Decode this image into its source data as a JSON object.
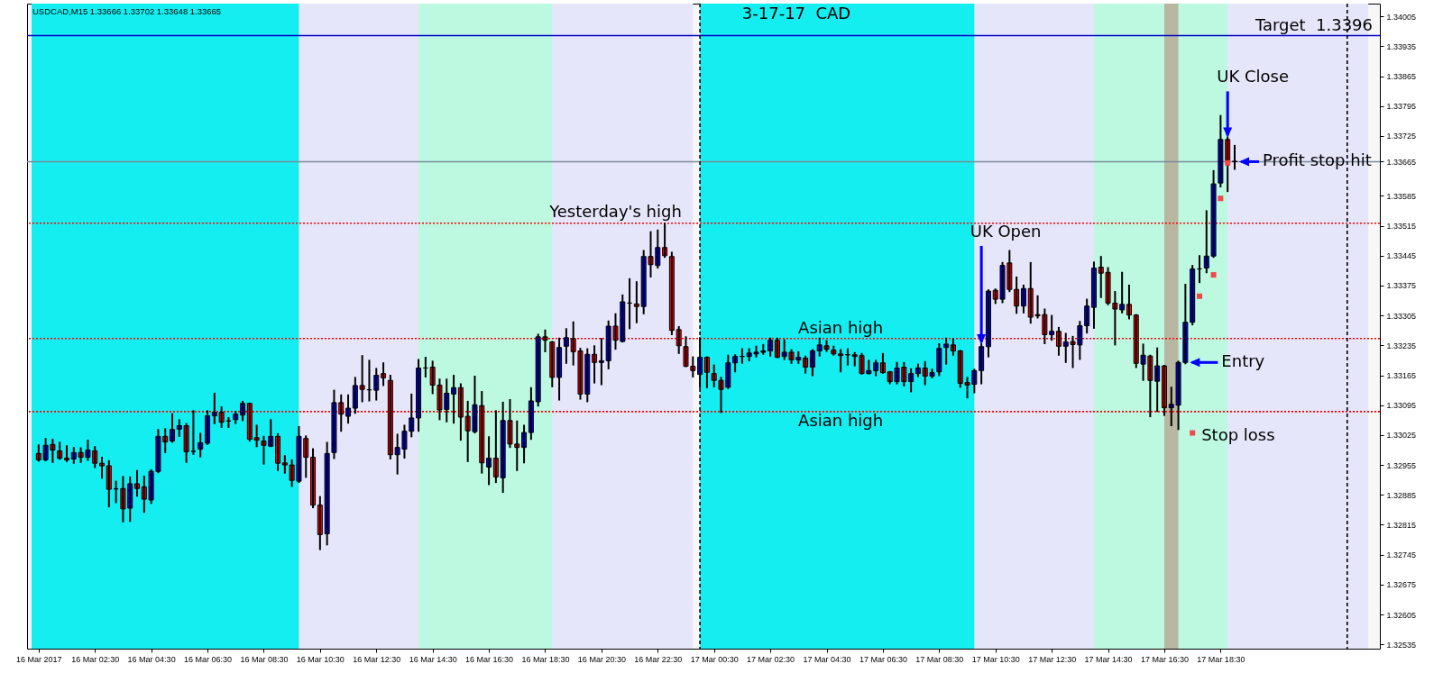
{
  "chart_data": {
    "type": "candlestick",
    "title": "3-17-17  CAD",
    "subtitle": "USDCAD,M15 1.33666 1.33702 1.33648 1.33665",
    "x": [
      "2017-03-16T00:30",
      "2017-03-16T00:45",
      "2017-03-16T01:00",
      "2017-03-16T01:15",
      "2017-03-16T01:30",
      "2017-03-16T01:45",
      "2017-03-16T02:00",
      "2017-03-16T02:15",
      "2017-03-16T02:30",
      "2017-03-16T02:45",
      "2017-03-16T03:00",
      "2017-03-16T03:15",
      "2017-03-16T03:30",
      "2017-03-16T03:45",
      "2017-03-16T04:00",
      "2017-03-16T04:15",
      "2017-03-16T04:30",
      "2017-03-16T04:45",
      "2017-03-16T05:00",
      "2017-03-16T05:15",
      "2017-03-16T05:30",
      "2017-03-16T05:45",
      "2017-03-16T06:00",
      "2017-03-16T06:15",
      "2017-03-16T06:30",
      "2017-03-16T06:45",
      "2017-03-16T07:00",
      "2017-03-16T07:15",
      "2017-03-16T07:30",
      "2017-03-16T07:45",
      "2017-03-16T08:00",
      "2017-03-16T08:15",
      "2017-03-16T08:30",
      "2017-03-16T08:45",
      "2017-03-16T09:00",
      "2017-03-16T09:15",
      "2017-03-16T09:30",
      "2017-03-16T09:45",
      "2017-03-16T10:00",
      "2017-03-16T10:15",
      "2017-03-16T10:30",
      "2017-03-16T10:45",
      "2017-03-16T11:00",
      "2017-03-16T11:15",
      "2017-03-16T11:30",
      "2017-03-16T11:45",
      "2017-03-16T12:00",
      "2017-03-16T12:15",
      "2017-03-16T12:30",
      "2017-03-16T12:45",
      "2017-03-16T13:00",
      "2017-03-16T13:15",
      "2017-03-16T13:30",
      "2017-03-16T13:45",
      "2017-03-16T14:00",
      "2017-03-16T14:15",
      "2017-03-16T14:30",
      "2017-03-16T14:45",
      "2017-03-16T15:00",
      "2017-03-16T15:15",
      "2017-03-16T15:30",
      "2017-03-16T15:45",
      "2017-03-16T16:00",
      "2017-03-16T16:15",
      "2017-03-16T16:30",
      "2017-03-16T16:45",
      "2017-03-16T17:00",
      "2017-03-16T17:15",
      "2017-03-16T17:30",
      "2017-03-16T17:45",
      "2017-03-16T18:00",
      "2017-03-16T18:15",
      "2017-03-16T18:30",
      "2017-03-16T18:45",
      "2017-03-16T19:00",
      "2017-03-16T19:15",
      "2017-03-16T19:30",
      "2017-03-16T19:45",
      "2017-03-16T20:00",
      "2017-03-16T20:15",
      "2017-03-16T20:30",
      "2017-03-16T20:45",
      "2017-03-16T21:00",
      "2017-03-16T21:15",
      "2017-03-16T21:30",
      "2017-03-16T21:45",
      "2017-03-16T22:00",
      "2017-03-16T22:15",
      "2017-03-16T22:30",
      "2017-03-16T22:45",
      "2017-03-16T23:00",
      "2017-03-16T23:15",
      "2017-03-16T23:30",
      "2017-03-16T23:45",
      "2017-03-17T00:00",
      "2017-03-17T00:15",
      "2017-03-17T00:30",
      "2017-03-17T00:45",
      "2017-03-17T01:00",
      "2017-03-17T01:15",
      "2017-03-17T01:30",
      "2017-03-17T01:45",
      "2017-03-17T02:00",
      "2017-03-17T02:15",
      "2017-03-17T02:30",
      "2017-03-17T02:45",
      "2017-03-17T03:00",
      "2017-03-17T03:15",
      "2017-03-17T03:30",
      "2017-03-17T03:45",
      "2017-03-17T04:00",
      "2017-03-17T04:15",
      "2017-03-17T04:30",
      "2017-03-17T04:45",
      "2017-03-17T05:00",
      "2017-03-17T05:15",
      "2017-03-17T05:30",
      "2017-03-17T05:45",
      "2017-03-17T06:00",
      "2017-03-17T06:15",
      "2017-03-17T06:30",
      "2017-03-17T06:45",
      "2017-03-17T07:00",
      "2017-03-17T07:15",
      "2017-03-17T07:30",
      "2017-03-17T07:45",
      "2017-03-17T08:00",
      "2017-03-17T08:15",
      "2017-03-17T08:30",
      "2017-03-17T08:45",
      "2017-03-17T09:00",
      "2017-03-17T09:15",
      "2017-03-17T09:30",
      "2017-03-17T09:45",
      "2017-03-17T10:00",
      "2017-03-17T10:15",
      "2017-03-17T10:30",
      "2017-03-17T10:45",
      "2017-03-17T11:00",
      "2017-03-17T11:15",
      "2017-03-17T11:30",
      "2017-03-17T11:45",
      "2017-03-17T12:00",
      "2017-03-17T12:15",
      "2017-03-17T12:30",
      "2017-03-17T12:45",
      "2017-03-17T13:00",
      "2017-03-17T13:15",
      "2017-03-17T13:30",
      "2017-03-17T13:45",
      "2017-03-17T14:00",
      "2017-03-17T14:15",
      "2017-03-17T14:30",
      "2017-03-17T14:45",
      "2017-03-17T15:00",
      "2017-03-17T15:15",
      "2017-03-17T15:30",
      "2017-03-17T15:45",
      "2017-03-17T16:00",
      "2017-03-17T16:15",
      "2017-03-17T16:30",
      "2017-03-17T16:45",
      "2017-03-17T17:00",
      "2017-03-17T17:15",
      "2017-03-17T17:30",
      "2017-03-17T17:45",
      "2017-03-17T18:00",
      "2017-03-17T18:15",
      "2017-03-17T18:30",
      "2017-03-17T18:45",
      "2017-03-17T19:00"
    ],
    "ohlc": [
      [
        1.32982,
        1.33001,
        1.32965,
        1.32967
      ],
      [
        1.32967,
        1.33016,
        1.32966,
        1.33001
      ],
      [
        1.33003,
        1.33014,
        1.32962,
        1.3299
      ],
      [
        1.32988,
        1.33007,
        1.32969,
        1.32971
      ],
      [
        1.32971,
        1.32999,
        1.32964,
        1.32967
      ],
      [
        1.32969,
        1.32995,
        1.3296,
        1.32984
      ],
      [
        1.32984,
        1.32994,
        1.32962,
        1.32973
      ],
      [
        1.32973,
        1.33012,
        1.32967,
        1.3299
      ],
      [
        1.32988,
        1.32997,
        1.3295,
        1.32959
      ],
      [
        1.32959,
        1.32972,
        1.32925,
        1.32953
      ],
      [
        1.32953,
        1.32964,
        1.32858,
        1.32898
      ],
      [
        1.32899,
        1.32916,
        1.32868,
        1.32899
      ],
      [
        1.329,
        1.32927,
        1.32823,
        1.32852
      ],
      [
        1.32854,
        1.32926,
        1.32824,
        1.32911
      ],
      [
        1.32911,
        1.32941,
        1.32883,
        1.329
      ],
      [
        1.32904,
        1.32928,
        1.32845,
        1.32875
      ],
      [
        1.32873,
        1.32943,
        1.32866,
        1.3294
      ],
      [
        1.3294,
        1.33037,
        1.32938,
        1.33022
      ],
      [
        1.33022,
        1.33039,
        1.32985,
        1.33009
      ],
      [
        1.33011,
        1.33074,
        1.33009,
        1.33038
      ],
      [
        1.33039,
        1.3306,
        1.33023,
        1.33047
      ],
      [
        1.33047,
        1.33051,
        1.32962,
        1.32986
      ],
      [
        1.32987,
        1.33081,
        1.32981,
        1.32987
      ],
      [
        1.32992,
        1.33028,
        1.32975,
        1.33007
      ],
      [
        1.33006,
        1.33081,
        1.33004,
        1.3307
      ],
      [
        1.3307,
        1.33122,
        1.33053,
        1.33078
      ],
      [
        1.33078,
        1.3309,
        1.33044,
        1.33055
      ],
      [
        1.33058,
        1.33065,
        1.33044,
        1.33058
      ],
      [
        1.33061,
        1.33079,
        1.33053,
        1.33074
      ],
      [
        1.33072,
        1.33103,
        1.3306,
        1.33099
      ],
      [
        1.33099,
        1.33099,
        1.33012,
        1.33015
      ],
      [
        1.33019,
        1.33047,
        1.32999,
        1.33013
      ],
      [
        1.33011,
        1.33021,
        1.32958,
        1.33001
      ],
      [
        1.32999,
        1.3306,
        1.32999,
        1.33022
      ],
      [
        1.33022,
        1.33027,
        1.32943,
        1.32959
      ],
      [
        1.3296,
        1.32976,
        1.32937,
        1.32955
      ],
      [
        1.32955,
        1.32966,
        1.32906,
        1.32919
      ],
      [
        1.32917,
        1.33044,
        1.32915,
        1.33022
      ],
      [
        1.33017,
        1.33022,
        1.32927,
        1.32973
      ],
      [
        1.32973,
        1.32992,
        1.32856,
        1.32861
      ],
      [
        1.32861,
        1.3288,
        1.32758,
        1.32792
      ],
      [
        1.32794,
        1.33007,
        1.32769,
        1.32982
      ],
      [
        1.32984,
        1.33129,
        1.32971,
        1.33101
      ],
      [
        1.33101,
        1.33118,
        1.33035,
        1.33074
      ],
      [
        1.33069,
        1.33118,
        1.33054,
        1.33088
      ],
      [
        1.33088,
        1.33159,
        1.33077,
        1.33141
      ],
      [
        1.33141,
        1.3321,
        1.33104,
        1.33132
      ],
      [
        1.33131,
        1.33199,
        1.33106,
        1.33131
      ],
      [
        1.3313,
        1.3318,
        1.33108,
        1.33165
      ],
      [
        1.33169,
        1.33193,
        1.33142,
        1.33159
      ],
      [
        1.33153,
        1.33164,
        1.3297,
        1.32979
      ],
      [
        1.32979,
        1.33026,
        1.32935,
        1.32996
      ],
      [
        1.32992,
        1.33047,
        1.32972,
        1.33034
      ],
      [
        1.33034,
        1.3312,
        1.33022,
        1.33065
      ],
      [
        1.33065,
        1.33201,
        1.33035,
        1.33182
      ],
      [
        1.33182,
        1.33206,
        1.33162,
        1.33182
      ],
      [
        1.33184,
        1.33197,
        1.33123,
        1.33142
      ],
      [
        1.33142,
        1.33155,
        1.33062,
        1.33084
      ],
      [
        1.33085,
        1.33155,
        1.33057,
        1.33123
      ],
      [
        1.33121,
        1.33164,
        1.33054,
        1.33136
      ],
      [
        1.33136,
        1.33144,
        1.33014,
        1.33067
      ],
      [
        1.33069,
        1.33103,
        1.32964,
        1.33035
      ],
      [
        1.33033,
        1.33162,
        1.33031,
        1.33096
      ],
      [
        1.33094,
        1.33126,
        1.32937,
        1.3296
      ],
      [
        1.3295,
        1.3302,
        1.3291,
        1.32971
      ],
      [
        1.32971,
        1.33081,
        1.32915,
        1.32927
      ],
      [
        1.32925,
        1.33101,
        1.32892,
        1.33059
      ],
      [
        1.33059,
        1.33107,
        1.32997,
        1.33004
      ],
      [
        1.33004,
        1.33057,
        1.32943,
        1.32996
      ],
      [
        1.32996,
        1.33047,
        1.32961,
        1.33031
      ],
      [
        1.33031,
        1.33135,
        1.33016,
        1.33105
      ],
      [
        1.33103,
        1.3326,
        1.33094,
        1.33255
      ],
      [
        1.33255,
        1.3327,
        1.33221,
        1.33247
      ],
      [
        1.33243,
        1.33243,
        1.33139,
        1.3316
      ],
      [
        1.3316,
        1.33251,
        1.33108,
        1.3323
      ],
      [
        1.33233,
        1.33273,
        1.33194,
        1.33253
      ],
      [
        1.33251,
        1.33289,
        1.3319,
        1.3322
      ],
      [
        1.33222,
        1.33227,
        1.3311,
        1.33121
      ],
      [
        1.33121,
        1.33226,
        1.33104,
        1.33214
      ],
      [
        1.33214,
        1.33233,
        1.33148,
        1.33195
      ],
      [
        1.33195,
        1.3325,
        1.33144,
        1.33199
      ],
      [
        1.33199,
        1.33291,
        1.33181,
        1.3328
      ],
      [
        1.3328,
        1.33308,
        1.33227,
        1.33247
      ],
      [
        1.33244,
        1.33352,
        1.33244,
        1.33337
      ],
      [
        1.33334,
        1.3339,
        1.33275,
        1.33334
      ],
      [
        1.33332,
        1.33383,
        1.33289,
        1.33326
      ],
      [
        1.33326,
        1.33456,
        1.3331,
        1.33443
      ],
      [
        1.33443,
        1.335,
        1.33396,
        1.33424
      ],
      [
        1.33422,
        1.33504,
        1.33417,
        1.33464
      ],
      [
        1.33464,
        1.3352,
        1.33442,
        1.33445
      ],
      [
        1.33443,
        1.33452,
        1.33261,
        1.3327
      ],
      [
        1.33272,
        1.33278,
        1.33217,
        1.33234
      ],
      [
        1.33232,
        1.33254,
        1.33186,
        1.33186
      ],
      [
        1.33186,
        1.33207,
        1.33162,
        1.33176
      ],
      [
        1.33167,
        1.33252,
        1.33137,
        1.33207
      ],
      [
        1.33207,
        1.33207,
        1.33137,
        1.33172
      ],
      [
        1.33169,
        1.33188,
        1.33139,
        1.33153
      ],
      [
        1.33153,
        1.33159,
        1.33079,
        1.33132
      ],
      [
        1.33137,
        1.33211,
        1.33135,
        1.33194
      ],
      [
        1.33194,
        1.33212,
        1.33174,
        1.33209
      ],
      [
        1.33209,
        1.33226,
        1.33194,
        1.33209
      ],
      [
        1.33209,
        1.33226,
        1.332,
        1.33217
      ],
      [
        1.33215,
        1.33232,
        1.33209,
        1.33219
      ],
      [
        1.33219,
        1.33236,
        1.33215,
        1.33222
      ],
      [
        1.33222,
        1.33251,
        1.33211,
        1.33247
      ],
      [
        1.33247,
        1.33251,
        1.33207,
        1.33207
      ],
      [
        1.33209,
        1.33247,
        1.33203,
        1.33219
      ],
      [
        1.33219,
        1.33224,
        1.33194,
        1.33201
      ],
      [
        1.33201,
        1.33219,
        1.33194,
        1.33207
      ],
      [
        1.33205,
        1.33209,
        1.33171,
        1.33184
      ],
      [
        1.33184,
        1.33224,
        1.33165,
        1.33222
      ],
      [
        1.33222,
        1.33251,
        1.33211,
        1.33236
      ],
      [
        1.33234,
        1.33245,
        1.33222,
        1.33226
      ],
      [
        1.33224,
        1.33232,
        1.33213,
        1.33215
      ],
      [
        1.33215,
        1.33224,
        1.33174,
        1.33211
      ],
      [
        1.33213,
        1.33226,
        1.3319,
        1.33213
      ],
      [
        1.33213,
        1.33217,
        1.33188,
        1.33209
      ],
      [
        1.33211,
        1.33215,
        1.33169,
        1.33169
      ],
      [
        1.33169,
        1.33199,
        1.33169,
        1.33176
      ],
      [
        1.33176,
        1.33199,
        1.33165,
        1.33194
      ],
      [
        1.33194,
        1.33215,
        1.33171,
        1.33171
      ],
      [
        1.33173,
        1.33173,
        1.33146,
        1.3315
      ],
      [
        1.3315,
        1.33194,
        1.33146,
        1.33182
      ],
      [
        1.33184,
        1.33194,
        1.33141,
        1.3315
      ],
      [
        1.3315,
        1.33179,
        1.33127,
        1.33169
      ],
      [
        1.33169,
        1.3319,
        1.33163,
        1.33182
      ],
      [
        1.33182,
        1.33196,
        1.33144,
        1.33163
      ],
      [
        1.33163,
        1.33178,
        1.3316,
        1.33171
      ],
      [
        1.33173,
        1.33238,
        1.33165,
        1.33228
      ],
      [
        1.3323,
        1.33251,
        1.33192,
        1.33238
      ],
      [
        1.33236,
        1.33249,
        1.33213,
        1.33222
      ],
      [
        1.33222,
        1.33222,
        1.33138,
        1.33146
      ],
      [
        1.33148,
        1.33159,
        1.33113,
        1.33142
      ],
      [
        1.33144,
        1.33178,
        1.33125,
        1.33176
      ],
      [
        1.33176,
        1.33238,
        1.33146,
        1.33232
      ],
      [
        1.33232,
        1.33364,
        1.33209,
        1.33362
      ],
      [
        1.33364,
        1.33366,
        1.33334,
        1.33343
      ],
      [
        1.33343,
        1.33428,
        1.33336,
        1.33422
      ],
      [
        1.33428,
        1.33456,
        1.33362,
        1.33366
      ],
      [
        1.33366,
        1.33394,
        1.33311,
        1.33327
      ],
      [
        1.33327,
        1.33375,
        1.33312,
        1.33368
      ],
      [
        1.33368,
        1.33428,
        1.33288,
        1.33301
      ],
      [
        1.33307,
        1.3335,
        1.333,
        1.33304
      ],
      [
        1.33307,
        1.33319,
        1.3324,
        1.3326
      ],
      [
        1.3326,
        1.33304,
        1.33248,
        1.33268
      ],
      [
        1.33268,
        1.33276,
        1.33213,
        1.33233
      ],
      [
        1.33233,
        1.33262,
        1.33196,
        1.33243
      ],
      [
        1.33244,
        1.33255,
        1.33184,
        1.33237
      ],
      [
        1.33236,
        1.3329,
        1.33203,
        1.33281
      ],
      [
        1.33281,
        1.33342,
        1.33265,
        1.33327
      ],
      [
        1.33324,
        1.33429,
        1.33276,
        1.33416
      ],
      [
        1.33418,
        1.33442,
        1.33348,
        1.33404
      ],
      [
        1.33406,
        1.33416,
        1.33331,
        1.33334
      ],
      [
        1.33334,
        1.3336,
        1.33237,
        1.3332
      ],
      [
        1.33318,
        1.33405,
        1.33312,
        1.33331
      ],
      [
        1.33331,
        1.33375,
        1.33298,
        1.33306
      ],
      [
        1.33306,
        1.33306,
        1.33184,
        1.33193
      ],
      [
        1.33191,
        1.33237,
        1.33154,
        1.33212
      ],
      [
        1.3321,
        1.33211,
        1.33069,
        1.33153
      ],
      [
        1.33151,
        1.33228,
        1.33081,
        1.33187
      ],
      [
        1.33187,
        1.33187,
        1.33072,
        1.33089
      ],
      [
        1.33089,
        1.33136,
        1.33048,
        1.33097
      ],
      [
        1.33095,
        1.33197,
        1.33039,
        1.33195
      ],
      [
        1.33195,
        1.33377,
        1.33193,
        1.33289
      ],
      [
        1.33289,
        1.33421,
        1.33284,
        1.33414
      ],
      [
        1.33414,
        1.33444,
        1.33383,
        1.33414
      ],
      [
        1.33416,
        1.33549,
        1.33406,
        1.33444
      ],
      [
        1.33444,
        1.33643,
        1.33442,
        1.33613
      ],
      [
        1.33615,
        1.33772,
        1.33607,
        1.33717
      ],
      [
        1.33717,
        1.33722,
        1.33596,
        1.33667
      ],
      [
        1.33666,
        1.33702,
        1.33648,
        1.33665
      ]
    ],
    "colors": [
      "#ff0000",
      "#0000ff",
      "#ff0000",
      "#ff0000",
      "#ff0000",
      "#0000ff",
      "#ff0000",
      "#0000ff",
      "#ff0000",
      "#ff0000",
      "#ff0000",
      "#000000",
      "#ff0000",
      "#0000ff",
      "#ff0000",
      "#ff0000",
      "#0000ff",
      "#0000ff",
      "#ff0000",
      "#0000ff",
      "#0000ff",
      "#ff0000",
      "#000000",
      "#0000ff",
      "#0000ff",
      "#0000ff",
      "#ff0000",
      "#000000",
      "#0000ff",
      "#0000ff",
      "#ff0000",
      "#ff0000",
      "#ff0000",
      "#0000ff",
      "#ff0000",
      "#ff0000",
      "#ff0000",
      "#0000ff",
      "#ff0000",
      "#ff0000",
      "#ff0000",
      "#0000ff",
      "#0000ff",
      "#ff0000",
      "#0000ff",
      "#0000ff",
      "#ff0000",
      "#000000",
      "#0000ff",
      "#ff0000",
      "#ff0000",
      "#0000ff",
      "#0000ff",
      "#0000ff",
      "#0000ff",
      "#000000",
      "#ff0000",
      "#ff0000",
      "#0000ff",
      "#0000ff",
      "#ff0000",
      "#ff0000",
      "#0000ff",
      "#ff0000",
      "#0000ff",
      "#ff0000",
      "#0000ff",
      "#ff0000",
      "#ff0000",
      "#0000ff",
      "#0000ff",
      "#0000ff",
      "#ff0000",
      "#ff0000",
      "#0000ff",
      "#0000ff",
      "#ff0000",
      "#ff0000",
      "#0000ff",
      "#ff0000",
      "#0000ff",
      "#0000ff",
      "#ff0000",
      "#0000ff",
      "#000000",
      "#ff0000",
      "#0000ff",
      "#ff0000",
      "#0000ff",
      "#ff0000",
      "#ff0000",
      "#ff0000",
      "#ff0000",
      "#ff0000",
      "#0000ff",
      "#ff0000",
      "#ff0000",
      "#ff0000",
      "#0000ff",
      "#0000ff",
      "#000000",
      "#0000ff",
      "#0000ff",
      "#0000ff",
      "#0000ff",
      "#ff0000",
      "#0000ff",
      "#ff0000",
      "#0000ff",
      "#ff0000",
      "#0000ff",
      "#0000ff",
      "#ff0000",
      "#ff0000",
      "#ff0000",
      "#000000",
      "#ff0000",
      "#ff0000",
      "#0000ff",
      "#0000ff",
      "#ff0000",
      "#ff0000",
      "#0000ff",
      "#ff0000",
      "#0000ff",
      "#0000ff",
      "#ff0000",
      "#0000ff",
      "#0000ff",
      "#0000ff",
      "#ff0000",
      "#ff0000",
      "#ff0000",
      "#0000ff",
      "#0000ff",
      "#0000ff",
      "#ff0000",
      "#0000ff",
      "#ff0000",
      "#ff0000",
      "#0000ff",
      "#ff0000",
      "#ff0000",
      "#ff0000",
      "#0000ff",
      "#ff0000",
      "#0000ff",
      "#ff0000",
      "#0000ff",
      "#0000ff",
      "#0000ff",
      "#ff0000",
      "#ff0000",
      "#ff0000",
      "#0000ff",
      "#ff0000",
      "#ff0000",
      "#0000ff",
      "#ff0000",
      "#0000ff",
      "#ff0000",
      "#0000ff",
      "#0000ff",
      "#0000ff",
      "#0000ff",
      "#000000",
      "#0000ff",
      "#0000ff",
      "#0000ff",
      "#ff0000",
      "#ff0000"
    ],
    "xlim": [
      "2017-03-16T00:15",
      "2017-03-18T00:00"
    ],
    "xticks": [
      {
        "value": "2017-03-16T00:30",
        "label": "16 Mar 2017"
      },
      {
        "value": "2017-03-16T02:30",
        "label": "16 Mar 02:30"
      },
      {
        "value": "2017-03-16T04:30",
        "label": "16 Mar 04:30"
      },
      {
        "value": "2017-03-16T06:30",
        "label": "16 Mar 06:30"
      },
      {
        "value": "2017-03-16T08:30",
        "label": "16 Mar 08:30"
      },
      {
        "value": "2017-03-16T10:30",
        "label": "16 Mar 10:30"
      },
      {
        "value": "2017-03-16T12:30",
        "label": "16 Mar 12:30"
      },
      {
        "value": "2017-03-16T14:30",
        "label": "16 Mar 14:30"
      },
      {
        "value": "2017-03-16T16:30",
        "label": "16 Mar 16:30"
      },
      {
        "value": "2017-03-16T18:30",
        "label": "16 Mar 18:30"
      },
      {
        "value": "2017-03-16T20:30",
        "label": "16 Mar 20:30"
      },
      {
        "value": "2017-03-16T22:30",
        "label": "16 Mar 22:30"
      },
      {
        "value": "2017-03-17T00:30",
        "label": "17 Mar 00:30"
      },
      {
        "value": "2017-03-17T02:30",
        "label": "17 Mar 02:30"
      },
      {
        "value": "2017-03-17T04:30",
        "label": "17 Mar 04:30"
      },
      {
        "value": "2017-03-17T06:30",
        "label": "17 Mar 06:30"
      },
      {
        "value": "2017-03-17T08:30",
        "label": "17 Mar 08:30"
      },
      {
        "value": "2017-03-17T10:30",
        "label": "17 Mar 10:30"
      },
      {
        "value": "2017-03-17T12:30",
        "label": "17 Mar 12:30"
      },
      {
        "value": "2017-03-17T14:30",
        "label": "17 Mar 14:30"
      },
      {
        "value": "2017-03-17T16:30",
        "label": "17 Mar 16:30"
      },
      {
        "value": "2017-03-17T18:30",
        "label": "17 Mar 18:30"
      }
    ],
    "ylim": [
      1.32525,
      1.34035
    ],
    "yticks": [
      1.32535,
      1.32605,
      1.32675,
      1.32745,
      1.32815,
      1.32885,
      1.32955,
      1.33025,
      1.33095,
      1.33165,
      1.33235,
      1.33305,
      1.33375,
      1.33445,
      1.33515,
      1.33585,
      1.33665,
      1.33725,
      1.33795,
      1.33865,
      1.33935,
      1.34005
    ],
    "bands": [
      {
        "axis": "x",
        "from": "2017-03-16T00:15",
        "to": "2017-03-16T23:45",
        "color": "#e6e6fa"
      },
      {
        "axis": "x",
        "from": "2017-03-16T00:15",
        "to": "2017-03-16T09:45",
        "color": "#14eef0"
      },
      {
        "axis": "x",
        "from": "2017-03-16T14:00",
        "to": "2017-03-16T18:45",
        "color": "#bdf9e0"
      },
      {
        "axis": "x",
        "from": "2017-03-17T00:00",
        "to": "2017-03-17T23:45",
        "color": "#e6e6fa"
      },
      {
        "axis": "x",
        "from": "2017-03-17T00:00",
        "to": "2017-03-17T09:45",
        "color": "#14eef0"
      },
      {
        "axis": "x",
        "from": "2017-03-17T14:00",
        "to": "2017-03-17T18:45",
        "color": "#bdf9e0"
      },
      {
        "axis": "x",
        "from": "2017-03-17T16:30",
        "to": "2017-03-17T17:00",
        "color": "#b7b7a2"
      }
    ],
    "ref_lines": [
      {
        "axis": "y",
        "value": 1.3396,
        "label": "Target  1.3396",
        "color": "#0000c8",
        "line_style": "solid"
      },
      {
        "axis": "y",
        "value": 1.33665,
        "color": "#7a8a9a",
        "line_style": "solid"
      },
      {
        "axis": "y",
        "value": 1.33521,
        "color": "#ff0000",
        "line_style": "dotted"
      },
      {
        "axis": "y",
        "value": 1.33251,
        "color": "#ff0000",
        "line_style": "dotted"
      },
      {
        "axis": "y",
        "value": 1.3308,
        "color": "#ff0000",
        "line_style": "dotted"
      },
      {
        "axis": "x",
        "value": "2017-03-17T00:00",
        "color": "#000000",
        "line_style": "dashed"
      },
      {
        "axis": "x",
        "value": "2017-03-17T23:00",
        "color": "#000000",
        "line_style": "dashed"
      }
    ],
    "series": [
      {
        "type": "scatter",
        "color": "#f04848",
        "marker": "square",
        "x": [
          "2017-03-17T17:30",
          "2017-03-17T17:45",
          "2017-03-17T18:15",
          "2017-03-17T18:30",
          "2017-03-17T18:45"
        ],
        "values": [
          1.3303,
          1.3335,
          1.334,
          1.33579,
          1.33662
        ]
      }
    ],
    "annotations": [
      {
        "text": "Yesterday's high",
        "x": "2017-03-16T21:00",
        "y": 1.33521
      },
      {
        "text": "UK Open",
        "x": "2017-03-17T10:00",
        "y": 1.33238
      },
      {
        "text": "Asian high",
        "x": "2017-03-17T05:00",
        "y": 1.33251
      },
      {
        "text": "Asian high",
        "x": "2017-03-17T05:00",
        "y": 1.3308
      },
      {
        "text": "UK Close",
        "x": "2017-03-17T18:45",
        "y": 1.33722
      },
      {
        "text": "Profit stop hit",
        "x": "2017-03-17T19:00",
        "y": 1.33665
      },
      {
        "text": "Entry",
        "x": "2017-03-17T17:15",
        "y": 1.33195
      },
      {
        "text": "Stop loss",
        "x": "2017-03-17T17:30",
        "y": 1.3303
      }
    ]
  }
}
